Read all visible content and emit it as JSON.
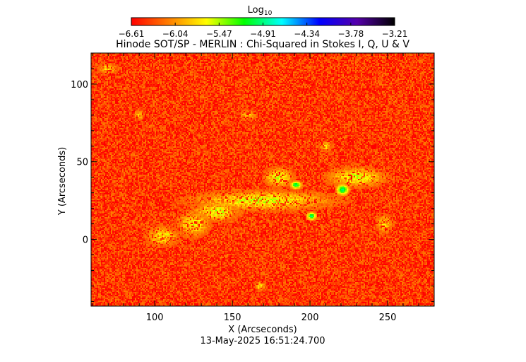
{
  "colorbar": {
    "title_main": "Log",
    "title_sub": "10",
    "tick_labels": [
      "-6.61",
      "-6.04",
      "-5.47",
      "-4.91",
      "-4.34",
      "-3.78",
      "-3.21"
    ],
    "range": [
      -6.61,
      -3.21
    ],
    "colors": [
      "#ff0000",
      "#ff7f00",
      "#ffff00",
      "#00ff00",
      "#00ffff",
      "#0000ff",
      "#5500aa",
      "#000000"
    ]
  },
  "footer": {
    "timestamp": "13-May-2025 16:51:24.700"
  },
  "chart_data": {
    "type": "heatmap",
    "title": "Hinode SOT/SP - MERLIN : Chi-Squared in Stokes I, Q, U & V",
    "xlabel": "X (Arcseconds)",
    "ylabel": "Y (Arcseconds)",
    "xlim": [
      59,
      280
    ],
    "ylim": [
      -43,
      120
    ],
    "x_ticks": [
      100,
      150,
      200,
      250
    ],
    "y_ticks": [
      0,
      50,
      100
    ],
    "x_tick_labels": [
      "100",
      "150",
      "200",
      "250"
    ],
    "y_tick_labels": [
      "0",
      "50",
      "100"
    ],
    "value_range_log10": [
      -6.61,
      -3.21
    ],
    "background_level_log10": -6.4,
    "features": [
      {
        "kind": "yellow-network",
        "x": 170,
        "y": 25,
        "rx": 45,
        "ry": 6,
        "level": -5.6
      },
      {
        "kind": "yellow-network",
        "x": 140,
        "y": 18,
        "rx": 14,
        "ry": 6,
        "level": -5.6
      },
      {
        "kind": "yellow-network",
        "x": 180,
        "y": 40,
        "rx": 9,
        "ry": 6,
        "level": -5.6
      },
      {
        "kind": "yellow-network",
        "x": 125,
        "y": 10,
        "rx": 10,
        "ry": 8,
        "level": -5.7
      },
      {
        "kind": "yellow-network",
        "x": 105,
        "y": 2,
        "rx": 10,
        "ry": 6,
        "level": -5.7
      },
      {
        "kind": "yellow-network",
        "x": 160,
        "y": 80,
        "rx": 5,
        "ry": 3,
        "level": -5.8
      },
      {
        "kind": "yellow-network",
        "x": 230,
        "y": 40,
        "rx": 18,
        "ry": 6,
        "level": -5.6
      },
      {
        "kind": "yellow-network",
        "x": 248,
        "y": 10,
        "rx": 5,
        "ry": 6,
        "level": -5.8
      },
      {
        "kind": "yellow-network",
        "x": 210,
        "y": 60,
        "rx": 4,
        "ry": 3,
        "level": -5.8
      },
      {
        "kind": "yellow-network",
        "x": 90,
        "y": 80,
        "rx": 3,
        "ry": 3,
        "level": -5.8
      },
      {
        "kind": "yellow-network",
        "x": 168,
        "y": -30,
        "rx": 3,
        "ry": 3,
        "level": -5.8
      },
      {
        "kind": "yellow-network",
        "x": 70,
        "y": 110,
        "rx": 6,
        "ry": 3,
        "level": -5.8
      },
      {
        "kind": "green-kernel",
        "x": 191,
        "y": 35,
        "rx": 3.5,
        "ry": 2.5,
        "level": -5.0
      },
      {
        "kind": "green-kernel",
        "x": 221,
        "y": 32,
        "rx": 4,
        "ry": 3.5,
        "level": -4.95
      },
      {
        "kind": "green-kernel",
        "x": 201,
        "y": 15,
        "rx": 3,
        "ry": 2.5,
        "level": -4.95
      }
    ]
  }
}
